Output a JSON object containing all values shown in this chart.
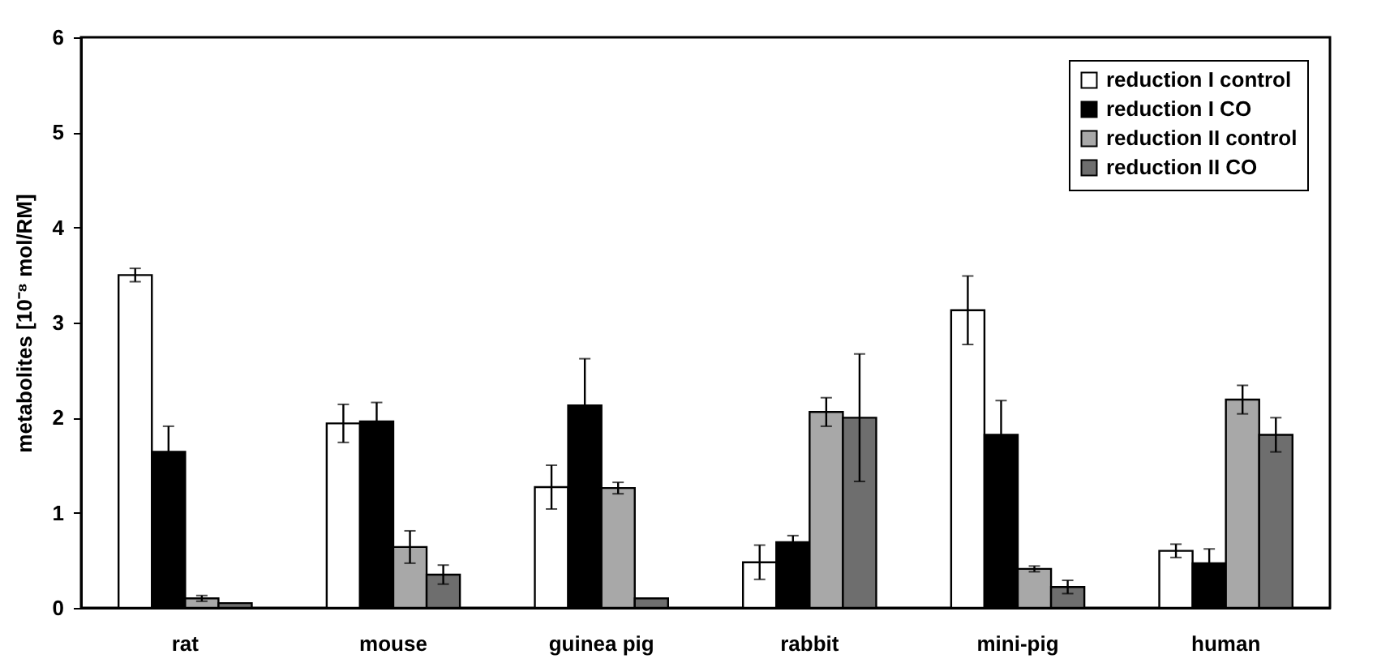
{
  "chart_data": {
    "type": "bar",
    "ylabel": "metabolites [10⁻⁸ mol/RM]",
    "categories": [
      "rat",
      "mouse",
      "guinea pig",
      "rabbit",
      "mini-pig",
      "human"
    ],
    "series": [
      {
        "name": "reduction I control",
        "color": "#ffffff",
        "values": [
          3.5,
          1.94,
          1.27,
          0.48,
          3.13,
          0.6
        ],
        "errors": [
          0.07,
          0.2,
          0.23,
          0.18,
          0.36,
          0.07
        ]
      },
      {
        "name": "reduction I CO",
        "color": "#000000",
        "values": [
          1.64,
          1.96,
          2.13,
          0.69,
          1.82,
          0.47
        ],
        "errors": [
          0.27,
          0.2,
          0.49,
          0.07,
          0.36,
          0.15
        ]
      },
      {
        "name": "reduction II control",
        "color": "#a8a8a8",
        "values": [
          0.1,
          0.64,
          1.26,
          2.06,
          0.41,
          2.19
        ],
        "errors": [
          0.03,
          0.17,
          0.06,
          0.15,
          0.03,
          0.15
        ]
      },
      {
        "name": "reduction II CO",
        "color": "#6e6e6e",
        "values": [
          0.05,
          0.35,
          0.1,
          2.0,
          0.22,
          1.82
        ],
        "errors": [
          null,
          0.1,
          null,
          0.67,
          0.07,
          0.18
        ]
      }
    ],
    "ylim": [
      0,
      6
    ],
    "yticks": [
      0,
      1,
      2,
      3,
      4,
      5,
      6
    ],
    "grid": false,
    "legend": "top right"
  }
}
